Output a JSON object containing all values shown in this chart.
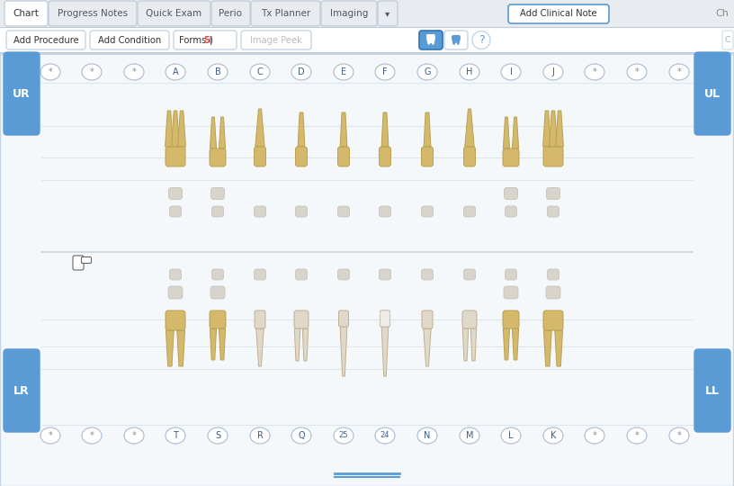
{
  "main_bg": "#ffffff",
  "tab_bar_bg": "#e8ecf0",
  "chart_area_bg": "#f5f8fb",
  "header_tabs": [
    "Chart",
    "Progress Notes",
    "Quick Exam",
    "Perio",
    "Tx Planner",
    "Imaging",
    "▾"
  ],
  "active_tab": "Chart",
  "add_clinical_note_label": "Add Clinical Note",
  "upper_teeth_letters": [
    "*",
    "*",
    "*",
    "A",
    "B",
    "C",
    "D",
    "E",
    "F",
    "G",
    "H",
    "I",
    "J",
    "*",
    "*",
    "*"
  ],
  "lower_teeth_letters": [
    "*",
    "*",
    "*",
    "T",
    "S",
    "R",
    "Q",
    "25",
    "24",
    "N",
    "M",
    "L",
    "K",
    "*",
    "*",
    "*"
  ],
  "accent_color": "#5b9bd5",
  "accent_dark": "#2e75b6",
  "border_color": "#c5d5e5",
  "tooth_yellow": "#d4b96a",
  "tooth_yellow_light": "#e8d090",
  "tooth_cream": "#e0d8c8",
  "tooth_white": "#d8d4cc",
  "tooth_gray": "#c8c4bc",
  "line_color": "#dde5ed",
  "tab_border": "#c0ccda",
  "forms_red": "#e05050",
  "toolbar_bg": "#ffffff"
}
